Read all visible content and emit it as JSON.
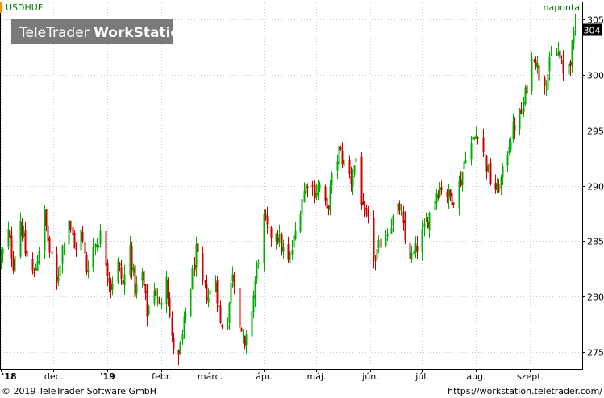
{
  "colors": {
    "up": "#00b000",
    "down": "#d00000",
    "grid": "#c8c8c8",
    "axis": "#000000",
    "price_marker_bg": "#000000",
    "price_marker_fg": "#ffffff",
    "title": "#008000",
    "ticker_bar": "#ff8c00",
    "watermark_bg": "#7a7a7a",
    "watermark_fg": "#ffffff"
  },
  "header": {
    "symbol": "USDHUF",
    "interval": "naponta"
  },
  "watermark": {
    "brand_light": "TeleTrader ",
    "brand_bold": "WorkStation"
  },
  "footer": {
    "copyright": "© 2019 TeleTrader Software GmbH",
    "url": "https://workstation.teletrader.com/"
  },
  "chart_data": {
    "type": "candlestick",
    "title": "USDHUF",
    "xlabel": "",
    "ylabel": "",
    "ylim": [
      273.5,
      306.5
    ],
    "y_ticks": [
      275,
      280,
      285,
      290,
      295,
      300,
      305
    ],
    "x_tick_labels": [
      "'18",
      "dec.",
      "'19",
      "febr.",
      "márc.",
      "ápr.",
      "máj.",
      "jún.",
      "júl.",
      "aug.",
      "szept."
    ],
    "last_price_label": "304",
    "last_price": 304,
    "grid": true,
    "legend": "none",
    "x_start": "2018-11-01",
    "x_end": "2019-10-01",
    "closes": [
      [
        "2018-11-01",
        283.5
      ],
      [
        "2018-11-05",
        285.8
      ],
      [
        "2018-11-08",
        283.0
      ],
      [
        "2018-11-12",
        287.0
      ],
      [
        "2018-11-15",
        284.0
      ],
      [
        "2018-11-20",
        281.8
      ],
      [
        "2018-11-23",
        284.5
      ],
      [
        "2018-11-26",
        287.3
      ],
      [
        "2018-11-29",
        284.0
      ],
      [
        "2018-12-03",
        281.0
      ],
      [
        "2018-12-06",
        284.5
      ],
      [
        "2018-12-10",
        287.2
      ],
      [
        "2018-12-13",
        284.2
      ],
      [
        "2018-12-17",
        285.8
      ],
      [
        "2018-12-20",
        282.5
      ],
      [
        "2018-12-24",
        284.5
      ],
      [
        "2018-12-28",
        285.5
      ],
      [
        "2019-01-03",
        281.0
      ],
      [
        "2019-01-07",
        283.0
      ],
      [
        "2019-01-10",
        281.0
      ],
      [
        "2019-01-14",
        284.5
      ],
      [
        "2019-01-17",
        280.5
      ],
      [
        "2019-01-21",
        282.0
      ],
      [
        "2019-01-24",
        278.5
      ],
      [
        "2019-01-28",
        281.0
      ],
      [
        "2019-01-31",
        279.0
      ],
      [
        "2019-02-04",
        282.5
      ],
      [
        "2019-02-07",
        276.0
      ],
      [
        "2019-02-11",
        274.3
      ],
      [
        "2019-02-14",
        277.5
      ],
      [
        "2019-02-18",
        281.0
      ],
      [
        "2019-02-21",
        284.0
      ],
      [
        "2019-02-25",
        281.0
      ],
      [
        "2019-02-28",
        280.0
      ],
      [
        "2019-03-04",
        281.5
      ],
      [
        "2019-03-07",
        277.5
      ],
      [
        "2019-03-11",
        278.0
      ],
      [
        "2019-03-14",
        282.5
      ],
      [
        "2019-03-18",
        278.0
      ],
      [
        "2019-03-21",
        275.0
      ],
      [
        "2019-03-25",
        279.0
      ],
      [
        "2019-03-28",
        282.5
      ],
      [
        "2019-04-01",
        287.0
      ],
      [
        "2019-04-04",
        285.5
      ],
      [
        "2019-04-08",
        286.0
      ],
      [
        "2019-04-11",
        284.5
      ],
      [
        "2019-04-15",
        283.0
      ],
      [
        "2019-04-18",
        285.0
      ],
      [
        "2019-04-23",
        289.0
      ],
      [
        "2019-04-26",
        290.5
      ],
      [
        "2019-04-30",
        289.5
      ],
      [
        "2019-05-03",
        290.0
      ],
      [
        "2019-05-07",
        287.5
      ],
      [
        "2019-05-10",
        290.5
      ],
      [
        "2019-05-14",
        293.2
      ],
      [
        "2019-05-17",
        292.0
      ],
      [
        "2019-05-21",
        290.5
      ],
      [
        "2019-05-24",
        292.5
      ],
      [
        "2019-05-28",
        287.5
      ],
      [
        "2019-05-31",
        286.5
      ],
      [
        "2019-06-04",
        283.0
      ],
      [
        "2019-06-07",
        285.0
      ],
      [
        "2019-06-11",
        286.0
      ],
      [
        "2019-06-14",
        287.0
      ],
      [
        "2019-06-18",
        288.0
      ],
      [
        "2019-06-21",
        285.0
      ],
      [
        "2019-06-25",
        283.5
      ],
      [
        "2019-06-28",
        284.5
      ],
      [
        "2019-07-02",
        286.0
      ],
      [
        "2019-07-05",
        287.5
      ],
      [
        "2019-07-09",
        289.5
      ],
      [
        "2019-07-12",
        290.0
      ],
      [
        "2019-07-16",
        289.0
      ],
      [
        "2019-07-19",
        289.0
      ],
      [
        "2019-07-23",
        290.5
      ],
      [
        "2019-07-26",
        293.0
      ],
      [
        "2019-07-30",
        294.0
      ],
      [
        "2019-08-02",
        295.0
      ],
      [
        "2019-08-06",
        292.5
      ],
      [
        "2019-08-09",
        290.5
      ],
      [
        "2019-08-13",
        289.5
      ],
      [
        "2019-08-16",
        291.0
      ],
      [
        "2019-08-20",
        294.0
      ],
      [
        "2019-08-23",
        295.5
      ],
      [
        "2019-08-27",
        296.5
      ],
      [
        "2019-08-30",
        299.0
      ],
      [
        "2019-09-03",
        302.0
      ],
      [
        "2019-09-06",
        300.0
      ],
      [
        "2019-09-10",
        299.5
      ],
      [
        "2019-09-13",
        301.5
      ],
      [
        "2019-09-17",
        302.0
      ],
      [
        "2019-09-20",
        300.0
      ],
      [
        "2019-09-24",
        301.5
      ],
      [
        "2019-09-27",
        304.0
      ]
    ]
  }
}
